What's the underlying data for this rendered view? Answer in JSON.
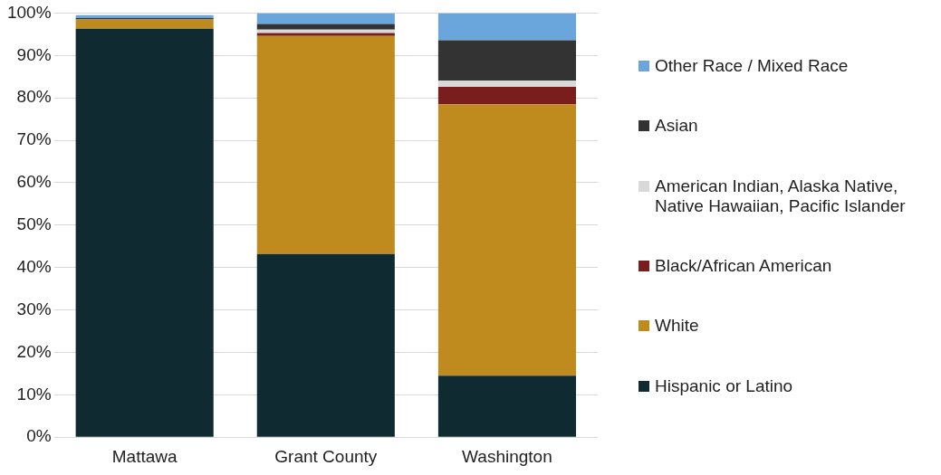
{
  "chart_data": {
    "type": "bar",
    "stacked": true,
    "categories": [
      "Mattawa",
      "Grant County",
      "Washington"
    ],
    "series": [
      {
        "name": "Hispanic or Latino",
        "color": "#0f2a30",
        "values": [
          96.3,
          43.2,
          14.5
        ]
      },
      {
        "name": "White",
        "color": "#c08b1e",
        "values": [
          2.2,
          51.4,
          64.0
        ]
      },
      {
        "name": "Black/African American",
        "color": "#7a1d1d",
        "values": [
          null,
          0.7,
          4.1
        ]
      },
      {
        "name": "American Indian, Alaska Native, Native Hawaiian, Pacific Islander",
        "color": "#d9d9d9",
        "values": [
          null,
          0.8,
          1.5
        ]
      },
      {
        "name": "Asian",
        "color": "#333333",
        "values": [
          0.3,
          1.3,
          9.5
        ]
      },
      {
        "name": "Other Race / Mixed Race",
        "color": "#6aa6dc",
        "values": [
          0.7,
          2.6,
          6.4
        ]
      }
    ],
    "ylim": [
      0,
      100
    ],
    "yticks": [
      {
        "value": 0,
        "label": "0%"
      },
      {
        "value": 10,
        "label": "10%"
      },
      {
        "value": 20,
        "label": "20%"
      },
      {
        "value": 30,
        "label": "30%"
      },
      {
        "value": 40,
        "label": "40%"
      },
      {
        "value": 50,
        "label": "50%"
      },
      {
        "value": 60,
        "label": "60%"
      },
      {
        "value": 70,
        "label": "70%"
      },
      {
        "value": 80,
        "label": "80%"
      },
      {
        "value": 90,
        "label": "90%"
      },
      {
        "value": 100,
        "label": "100%"
      }
    ],
    "grid": "y",
    "legend": "right"
  }
}
